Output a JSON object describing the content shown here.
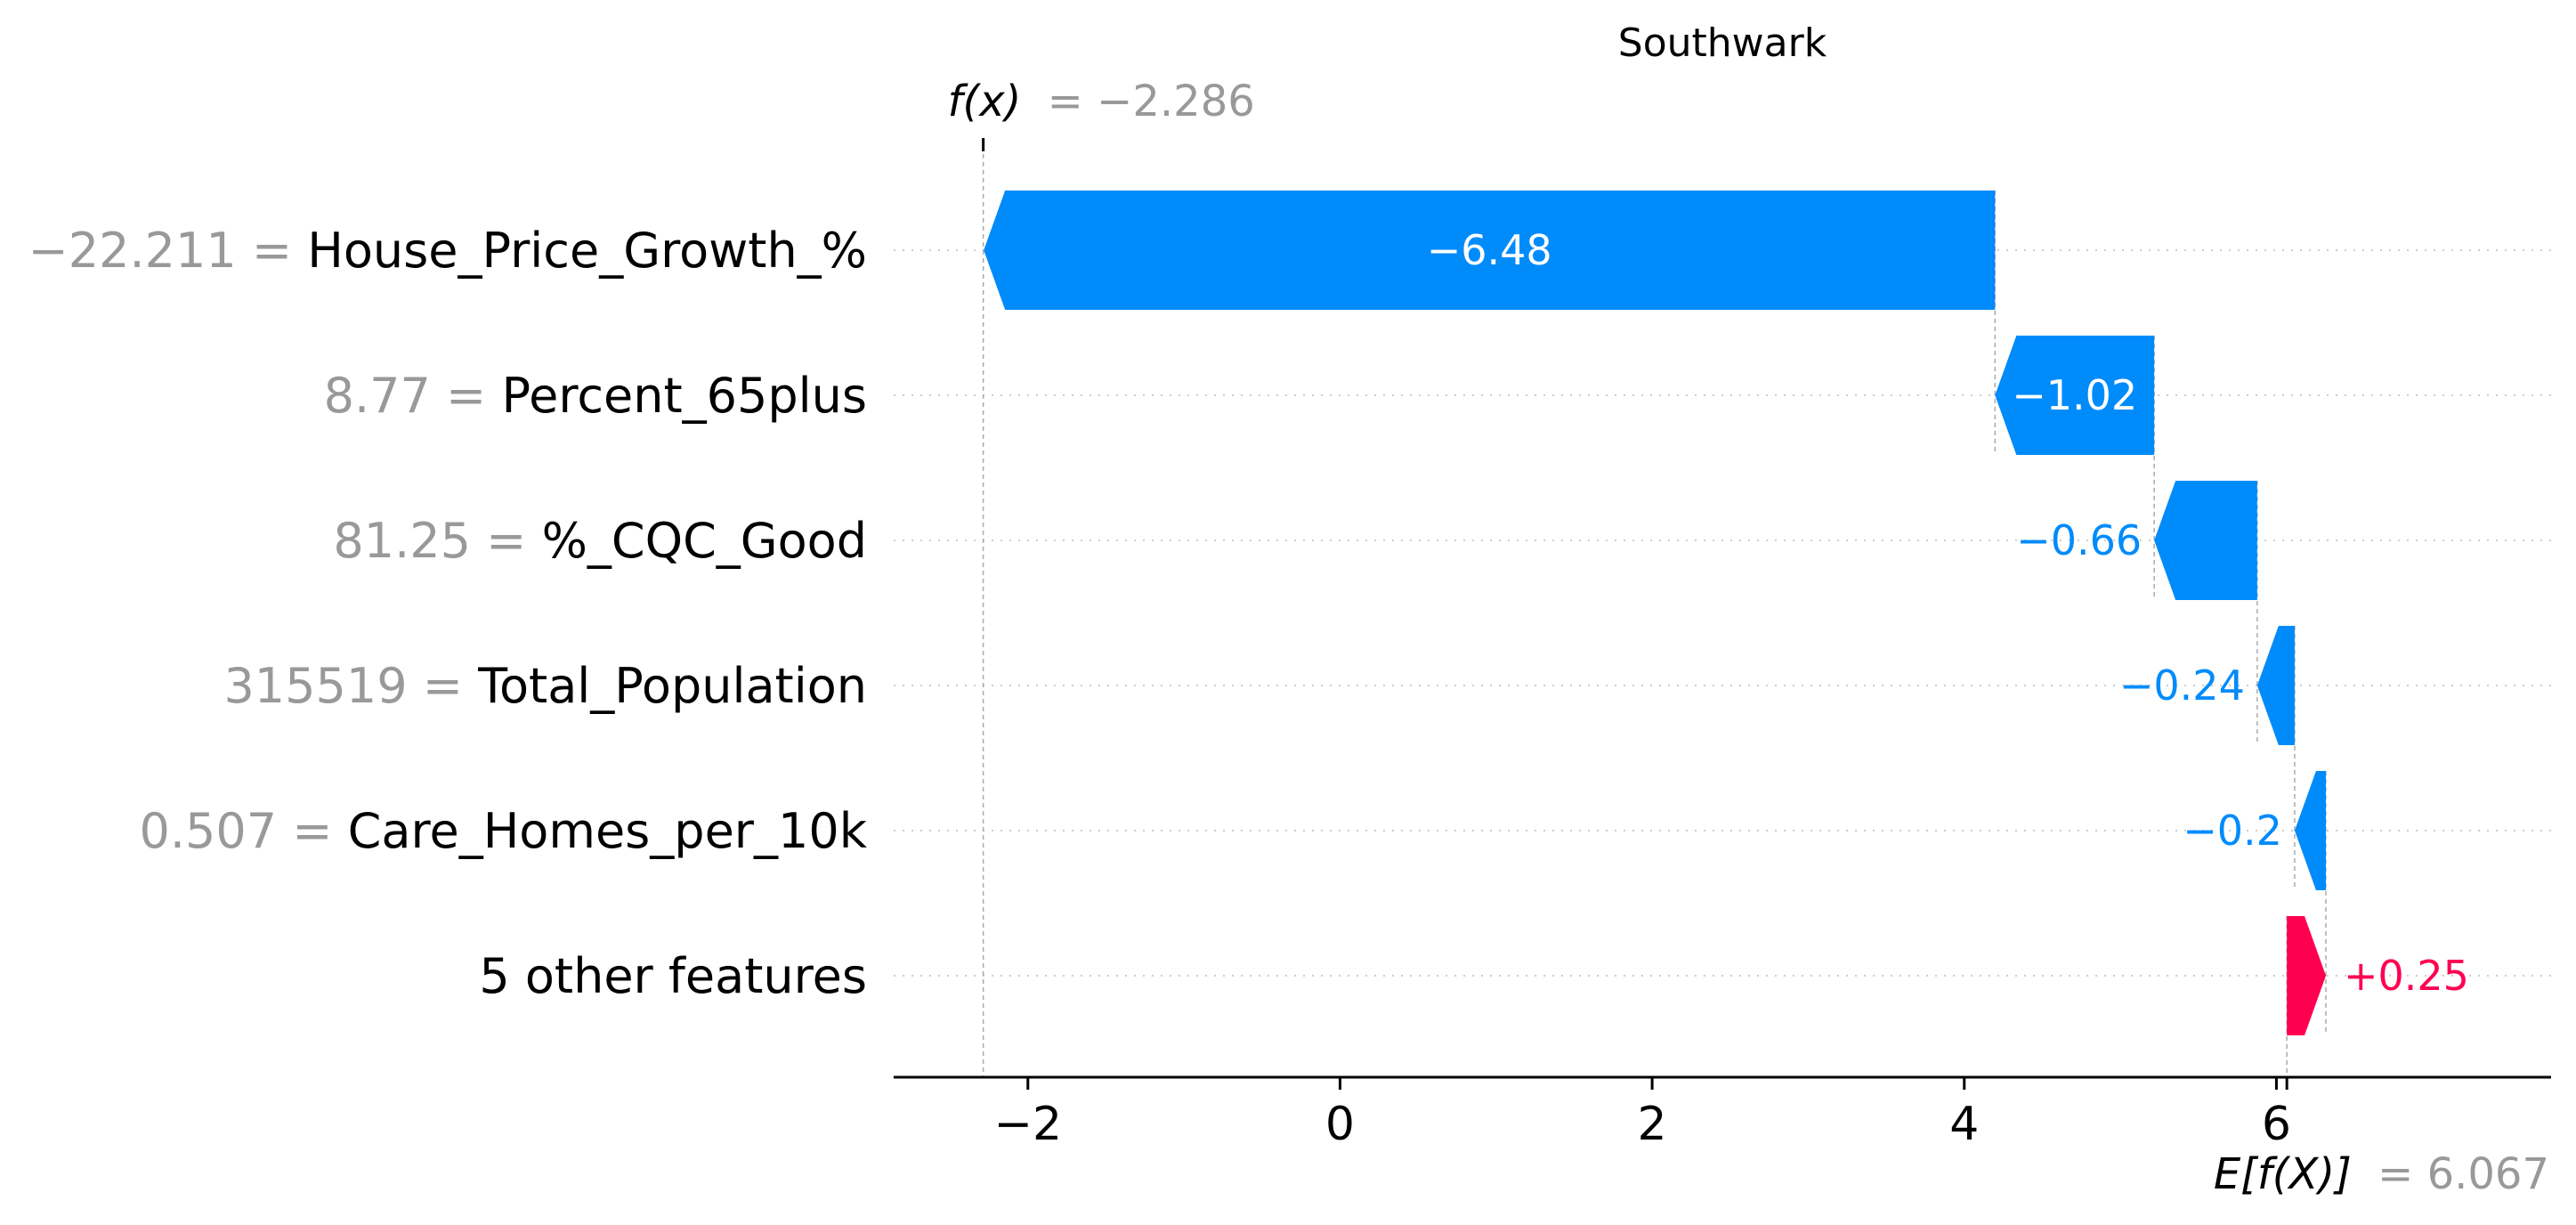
{
  "chart_data": {
    "type": "waterfall",
    "title": "Southwark",
    "fx_label": "f(x)",
    "fx_value": "−2.286",
    "fx": -2.286,
    "ex_label": "E[f(X)]",
    "ex_value": "6.067",
    "ex": 6.067,
    "features": [
      {
        "value": "−22.211",
        "name": "House_Price_Growth_%",
        "contribution": -6.48,
        "label": "−6.48"
      },
      {
        "value": "8.77",
        "name": "Percent_65plus",
        "contribution": -1.02,
        "label": "−1.02"
      },
      {
        "value": "81.25",
        "name": "%_CQC_Good",
        "contribution": -0.66,
        "label": "−0.66"
      },
      {
        "value": "315519",
        "name": "Total_Population",
        "contribution": -0.24,
        "label": "−0.24"
      },
      {
        "value": "0.507",
        "name": "Care_Homes_per_10k",
        "contribution": -0.2,
        "label": "−0.2"
      },
      {
        "value": "",
        "name": "5 other features",
        "contribution": 0.25,
        "label": "+0.25"
      }
    ],
    "xlim": [
      -2.86,
      7.76
    ],
    "xticks": [
      {
        "value": -2,
        "label": "−2"
      },
      {
        "value": 0,
        "label": "0"
      },
      {
        "value": 2,
        "label": "2"
      },
      {
        "value": 4,
        "label": "4"
      },
      {
        "value": 6,
        "label": "6"
      }
    ],
    "colors": {
      "negative": "#008bfb",
      "positive": "#ff0051",
      "value_text": "#999999"
    }
  }
}
